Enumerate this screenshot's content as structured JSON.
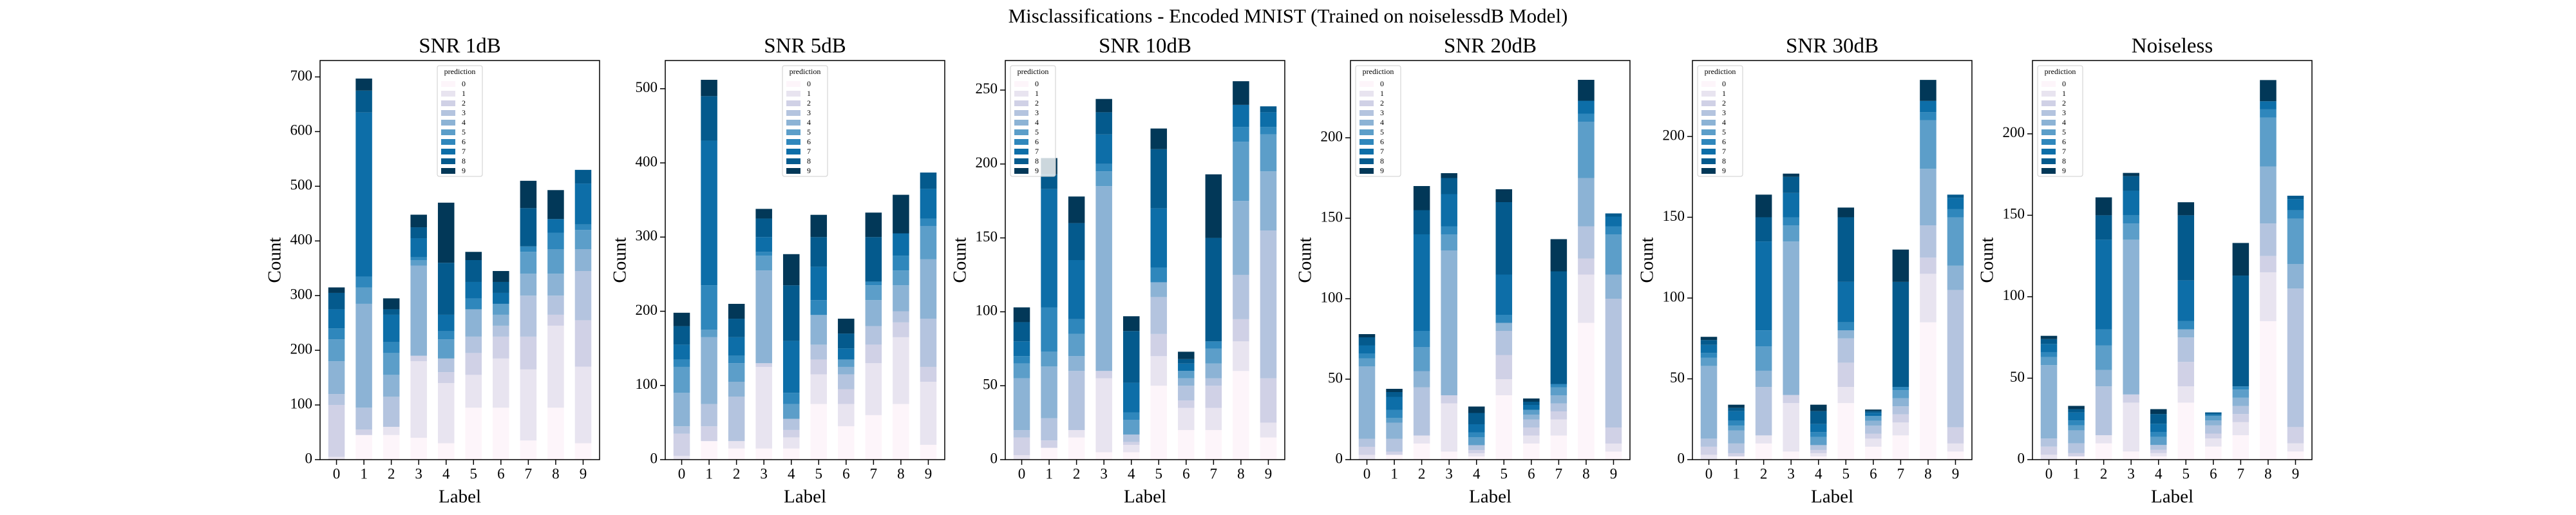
{
  "title": "Misclassifications - Encoded MNIST (Trained on noiselessdB Model)",
  "chart_data": [
    {
      "type": "bar",
      "stacked": true,
      "title": "SNR 1dB",
      "xlabel": "Label",
      "ylabel": "Count",
      "legend_title": "prediction",
      "legend_loc": "upper center",
      "categories": [
        "0",
        "1",
        "2",
        "3",
        "4",
        "5",
        "6",
        "7",
        "8",
        "9"
      ],
      "ylim": [
        0,
        730
      ],
      "yticks": [
        0,
        100,
        200,
        300,
        400,
        500,
        600,
        700
      ],
      "series": [
        {
          "name": "0",
          "color": "#fdf5fa",
          "values": [
            0,
            45,
            45,
            40,
            30,
            95,
            95,
            35,
            95,
            30
          ]
        },
        {
          "name": "1",
          "color": "#e8e4f0",
          "values": [
            5,
            0,
            15,
            140,
            110,
            60,
            90,
            130,
            150,
            140
          ]
        },
        {
          "name": "2",
          "color": "#d0d1e6",
          "values": [
            95,
            10,
            0,
            10,
            20,
            40,
            40,
            60,
            20,
            85
          ]
        },
        {
          "name": "3",
          "color": "#b4c4df",
          "values": [
            20,
            40,
            55,
            0,
            25,
            30,
            20,
            75,
            35,
            90
          ]
        },
        {
          "name": "4",
          "color": "#8cb3d5",
          "values": [
            60,
            190,
            40,
            165,
            0,
            50,
            20,
            40,
            40,
            40
          ]
        },
        {
          "name": "5",
          "color": "#5c9ec9",
          "values": [
            40,
            30,
            40,
            10,
            35,
            0,
            20,
            40,
            45,
            35
          ]
        },
        {
          "name": "6",
          "color": "#2f87bc",
          "values": [
            20,
            20,
            20,
            5,
            15,
            20,
            0,
            10,
            30,
            10
          ]
        },
        {
          "name": "7",
          "color": "#0d6ea8",
          "values": [
            35,
            300,
            50,
            35,
            30,
            30,
            20,
            0,
            25,
            75
          ]
        },
        {
          "name": "8",
          "color": "#045a8d",
          "values": [
            30,
            40,
            10,
            20,
            95,
            40,
            20,
            70,
            0,
            25
          ]
        },
        {
          "name": "9",
          "color": "#023858",
          "values": [
            10,
            22,
            20,
            23,
            110,
            15,
            20,
            50,
            53,
            0
          ]
        }
      ]
    },
    {
      "type": "bar",
      "stacked": true,
      "title": "SNR 5dB",
      "xlabel": "Label",
      "ylabel": "Count",
      "legend_title": "prediction",
      "legend_loc": "upper center",
      "categories": [
        "0",
        "1",
        "2",
        "3",
        "4",
        "5",
        "6",
        "7",
        "8",
        "9"
      ],
      "ylim": [
        0,
        538
      ],
      "yticks": [
        0,
        100,
        200,
        300,
        400,
        500
      ],
      "series": [
        {
          "name": "0",
          "color": "#fdf5fa",
          "values": [
            0,
            25,
            15,
            15,
            15,
            75,
            45,
            60,
            75,
            20
          ]
        },
        {
          "name": "1",
          "color": "#e8e4f0",
          "values": [
            5,
            0,
            10,
            110,
            15,
            40,
            30,
            70,
            90,
            85
          ]
        },
        {
          "name": "2",
          "color": "#d0d1e6",
          "values": [
            30,
            20,
            0,
            5,
            10,
            20,
            20,
            25,
            20,
            20
          ]
        },
        {
          "name": "3",
          "color": "#b4c4df",
          "values": [
            10,
            30,
            60,
            0,
            15,
            20,
            20,
            25,
            15,
            65
          ]
        },
        {
          "name": "4",
          "color": "#8cb3d5",
          "values": [
            45,
            90,
            20,
            125,
            0,
            40,
            10,
            35,
            35,
            80
          ]
        },
        {
          "name": "5",
          "color": "#5c9ec9",
          "values": [
            35,
            10,
            25,
            20,
            20,
            0,
            10,
            20,
            20,
            45
          ]
        },
        {
          "name": "6",
          "color": "#2f87bc",
          "values": [
            10,
            60,
            10,
            5,
            15,
            20,
            0,
            5,
            20,
            10
          ]
        },
        {
          "name": "7",
          "color": "#0d6ea8",
          "values": [
            20,
            195,
            25,
            20,
            70,
            45,
            15,
            0,
            30,
            40
          ]
        },
        {
          "name": "8",
          "color": "#045a8d",
          "values": [
            25,
            60,
            25,
            25,
            75,
            40,
            20,
            60,
            0,
            22
          ]
        },
        {
          "name": "9",
          "color": "#023858",
          "values": [
            18,
            22,
            20,
            13,
            42,
            30,
            20,
            33,
            52,
            0
          ]
        }
      ]
    },
    {
      "type": "bar",
      "stacked": true,
      "title": "SNR 10dB",
      "xlabel": "Label",
      "ylabel": "Count",
      "legend_title": "prediction",
      "legend_loc": "upper left",
      "categories": [
        "0",
        "1",
        "2",
        "3",
        "4",
        "5",
        "6",
        "7",
        "8",
        "9"
      ],
      "ylim": [
        0,
        270
      ],
      "yticks": [
        0,
        50,
        100,
        150,
        200,
        250
      ],
      "series": [
        {
          "name": "0",
          "color": "#fdf5fa",
          "values": [
            0,
            8,
            15,
            5,
            5,
            50,
            20,
            20,
            60,
            15
          ]
        },
        {
          "name": "1",
          "color": "#e8e4f0",
          "values": [
            3,
            0,
            5,
            50,
            5,
            20,
            15,
            15,
            20,
            10
          ]
        },
        {
          "name": "2",
          "color": "#d0d1e6",
          "values": [
            12,
            5,
            0,
            5,
            2,
            15,
            5,
            15,
            15,
            30
          ]
        },
        {
          "name": "3",
          "color": "#b4c4df",
          "values": [
            5,
            15,
            40,
            0,
            5,
            25,
            10,
            5,
            30,
            100
          ]
        },
        {
          "name": "4",
          "color": "#8cb3d5",
          "values": [
            35,
            35,
            10,
            125,
            0,
            10,
            5,
            10,
            50,
            40
          ]
        },
        {
          "name": "5",
          "color": "#5c9ec9",
          "values": [
            10,
            10,
            15,
            10,
            10,
            0,
            5,
            10,
            40,
            25
          ]
        },
        {
          "name": "6",
          "color": "#2f87bc",
          "values": [
            5,
            30,
            10,
            5,
            5,
            10,
            0,
            5,
            10,
            5
          ]
        },
        {
          "name": "7",
          "color": "#0d6ea8",
          "values": [
            10,
            80,
            40,
            20,
            20,
            40,
            5,
            0,
            15,
            10
          ]
        },
        {
          "name": "8",
          "color": "#045a8d",
          "values": [
            13,
            10,
            25,
            15,
            35,
            40,
            3,
            70,
            0,
            4
          ]
        },
        {
          "name": "9",
          "color": "#023858",
          "values": [
            10,
            11,
            18,
            9,
            10,
            14,
            5,
            43,
            16,
            0
          ]
        }
      ]
    },
    {
      "type": "bar",
      "stacked": true,
      "title": "SNR 20dB",
      "xlabel": "Label",
      "ylabel": "Count",
      "legend_title": "prediction",
      "legend_loc": "upper left",
      "categories": [
        "0",
        "1",
        "2",
        "3",
        "4",
        "5",
        "6",
        "7",
        "8",
        "9"
      ],
      "ylim": [
        0,
        248
      ],
      "yticks": [
        0,
        50,
        100,
        150,
        200
      ],
      "series": [
        {
          "name": "0",
          "color": "#fdf5fa",
          "values": [
            0,
            3,
            10,
            5,
            2,
            40,
            10,
            15,
            85,
            5
          ]
        },
        {
          "name": "1",
          "color": "#e8e4f0",
          "values": [
            3,
            0,
            5,
            30,
            2,
            10,
            5,
            10,
            30,
            5
          ]
        },
        {
          "name": "2",
          "color": "#d0d1e6",
          "values": [
            5,
            2,
            0,
            5,
            2,
            15,
            5,
            5,
            10,
            10
          ]
        },
        {
          "name": "3",
          "color": "#b4c4df",
          "values": [
            5,
            8,
            30,
            0,
            3,
            15,
            5,
            5,
            20,
            80
          ]
        },
        {
          "name": "4",
          "color": "#8cb3d5",
          "values": [
            45,
            10,
            10,
            90,
            0,
            5,
            3,
            5,
            30,
            15
          ]
        },
        {
          "name": "5",
          "color": "#5c9ec9",
          "values": [
            5,
            3,
            15,
            10,
            5,
            0,
            3,
            5,
            35,
            25
          ]
        },
        {
          "name": "6",
          "color": "#2f87bc",
          "values": [
            3,
            5,
            10,
            5,
            3,
            5,
            0,
            2,
            5,
            5
          ]
        },
        {
          "name": "7",
          "color": "#0d6ea8",
          "values": [
            5,
            8,
            60,
            20,
            5,
            25,
            3,
            0,
            8,
            6
          ]
        },
        {
          "name": "8",
          "color": "#045a8d",
          "values": [
            5,
            3,
            15,
            10,
            7,
            45,
            2,
            70,
            0,
            2
          ]
        },
        {
          "name": "9",
          "color": "#023858",
          "values": [
            2,
            2,
            15,
            3,
            4,
            8,
            2,
            20,
            13,
            0
          ]
        }
      ]
    },
    {
      "type": "bar",
      "stacked": true,
      "title": "SNR 30dB",
      "xlabel": "Label",
      "ylabel": "Count",
      "legend_title": "prediction",
      "legend_loc": "upper left",
      "categories": [
        "0",
        "1",
        "2",
        "3",
        "4",
        "5",
        "6",
        "7",
        "8",
        "9"
      ],
      "ylim": [
        0,
        247
      ],
      "yticks": [
        0,
        50,
        100,
        150,
        200
      ],
      "series": [
        {
          "name": "0",
          "color": "#fdf5fa",
          "values": [
            0,
            2,
            10,
            5,
            2,
            35,
            8,
            15,
            85,
            5
          ]
        },
        {
          "name": "1",
          "color": "#e8e4f0",
          "values": [
            3,
            0,
            5,
            30,
            2,
            10,
            5,
            8,
            30,
            5
          ]
        },
        {
          "name": "2",
          "color": "#d0d1e6",
          "values": [
            5,
            2,
            0,
            5,
            2,
            15,
            3,
            5,
            10,
            10
          ]
        },
        {
          "name": "3",
          "color": "#b4c4df",
          "values": [
            5,
            6,
            30,
            0,
            3,
            15,
            5,
            5,
            20,
            85
          ]
        },
        {
          "name": "4",
          "color": "#8cb3d5",
          "values": [
            45,
            8,
            10,
            95,
            0,
            5,
            3,
            5,
            35,
            15
          ]
        },
        {
          "name": "5",
          "color": "#5c9ec9",
          "values": [
            5,
            3,
            15,
            10,
            5,
            0,
            3,
            5,
            30,
            30
          ]
        },
        {
          "name": "6",
          "color": "#2f87bc",
          "values": [
            3,
            3,
            10,
            5,
            3,
            5,
            0,
            2,
            5,
            5
          ]
        },
        {
          "name": "7",
          "color": "#0d6ea8",
          "values": [
            5,
            6,
            55,
            15,
            5,
            25,
            2,
            0,
            7,
            7
          ]
        },
        {
          "name": "8",
          "color": "#045a8d",
          "values": [
            3,
            2,
            15,
            10,
            8,
            40,
            1,
            65,
            0,
            2
          ]
        },
        {
          "name": "9",
          "color": "#023858",
          "values": [
            2,
            2,
            14,
            2,
            4,
            6,
            1,
            20,
            13,
            0
          ]
        }
      ]
    },
    {
      "type": "bar",
      "stacked": true,
      "title": "Noiseless",
      "xlabel": "Label",
      "ylabel": "Count",
      "legend_title": "prediction",
      "legend_loc": "upper left",
      "categories": [
        "0",
        "1",
        "2",
        "3",
        "4",
        "5",
        "6",
        "7",
        "8",
        "9"
      ],
      "ylim": [
        0,
        245
      ],
      "yticks": [
        0,
        50,
        100,
        150,
        200
      ],
      "series": [
        {
          "name": "0",
          "color": "#fdf5fa",
          "values": [
            0,
            2,
            10,
            5,
            2,
            35,
            8,
            15,
            85,
            5
          ]
        },
        {
          "name": "1",
          "color": "#e8e4f0",
          "values": [
            3,
            0,
            5,
            30,
            2,
            10,
            5,
            8,
            30,
            5
          ]
        },
        {
          "name": "2",
          "color": "#d0d1e6",
          "values": [
            5,
            2,
            0,
            5,
            2,
            15,
            3,
            5,
            10,
            10
          ]
        },
        {
          "name": "3",
          "color": "#b4c4df",
          "values": [
            5,
            6,
            30,
            0,
            3,
            15,
            5,
            5,
            20,
            85
          ]
        },
        {
          "name": "4",
          "color": "#8cb3d5",
          "values": [
            45,
            8,
            10,
            95,
            0,
            5,
            3,
            5,
            35,
            15
          ]
        },
        {
          "name": "5",
          "color": "#5c9ec9",
          "values": [
            5,
            3,
            15,
            10,
            5,
            0,
            3,
            5,
            30,
            28
          ]
        },
        {
          "name": "6",
          "color": "#2f87bc",
          "values": [
            3,
            3,
            10,
            5,
            3,
            5,
            0,
            2,
            5,
            5
          ]
        },
        {
          "name": "7",
          "color": "#0d6ea8",
          "values": [
            5,
            5,
            55,
            15,
            5,
            25,
            1,
            0,
            5,
            7
          ]
        },
        {
          "name": "8",
          "color": "#045a8d",
          "values": [
            3,
            2,
            15,
            9,
            6,
            40,
            1,
            68,
            0,
            2
          ]
        },
        {
          "name": "9",
          "color": "#023858",
          "values": [
            2,
            2,
            11,
            2,
            3,
            8,
            0,
            20,
            13,
            0
          ]
        }
      ]
    }
  ]
}
